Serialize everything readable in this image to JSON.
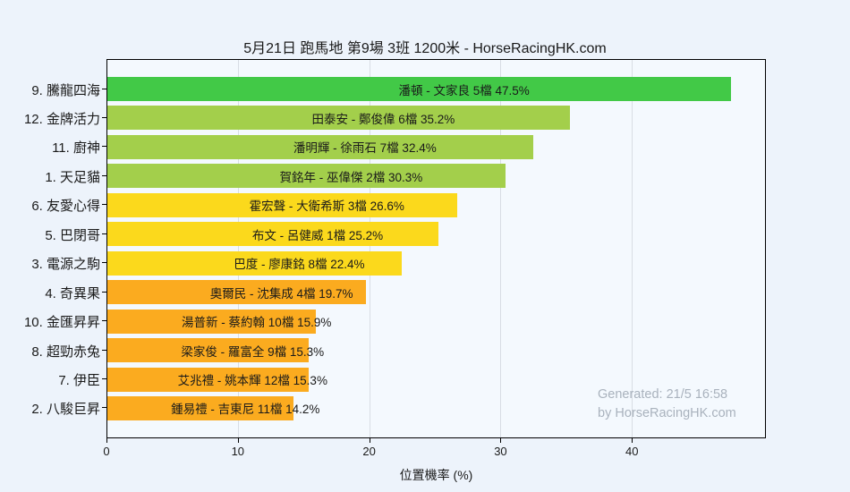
{
  "title": "5月21日  跑馬地  第9場  3班  1200米 - HorseRacingHK.com",
  "watermark": {
    "line1": "Generated: 21/5 16:58",
    "line2": "by HorseRacingHK.com"
  },
  "colors": {
    "background": "#edf3fb",
    "plot_background": "#f4f9fe",
    "gridline": "#d8dde4",
    "axis": "#000000",
    "green": "#42c947",
    "yellow_green": "#a3cf4b",
    "yellow": "#fbd91c",
    "orange": "#fbab1f",
    "watermark_text": "#a9b2bd"
  },
  "chart_data": {
    "type": "bar",
    "orientation": "horizontal",
    "title": "5月21日  跑馬地  第9場  3班  1200米 - HorseRacingHK.com",
    "xlabel": "位置機率 (%)",
    "ylabel": "",
    "xlim": [
      0,
      50.2
    ],
    "xticks": [
      0,
      10,
      20,
      30,
      40
    ],
    "grid": "vertical",
    "legend": "none",
    "categories": [
      "9. 騰龍四海",
      "12. 金牌活力",
      "11. 廚神",
      "1. 天足貓",
      "6. 友愛心得",
      "5. 巴閉哥",
      "3. 電源之駒",
      "4. 奇異果",
      "10. 金匯昇昇",
      "8. 超勁赤兔",
      "7. 伊臣",
      "2. 八駿巨昇"
    ],
    "values": [
      47.5,
      35.2,
      32.4,
      30.3,
      26.6,
      25.2,
      22.4,
      19.7,
      15.9,
      15.3,
      15.3,
      14.2
    ],
    "bar_labels": [
      "潘頓 - 文家良 5檔  47.5%",
      "田泰安 - 鄭俊偉 6檔  35.2%",
      "潘明輝 - 徐雨石 7檔  32.4%",
      "賀銘年 - 巫偉傑 2檔  30.3%",
      "霍宏聲 - 大衛希斯 3檔  26.6%",
      "布文 - 呂健威 1檔  25.2%",
      "巴度 - 廖康銘 8檔  22.4%",
      "奧爾民 - 沈集成 4檔  19.7%",
      "湯普新 - 蔡約翰 10檔  15.9%",
      "梁家俊 - 羅富全 9檔  15.3%",
      "艾兆禮 - 姚本輝 12檔  15.3%",
      "鍾易禮 - 吉東尼 11檔  14.2%"
    ],
    "bar_colors": [
      "#42c947",
      "#a3cf4b",
      "#a3cf4b",
      "#a3cf4b",
      "#fbd91c",
      "#fbd91c",
      "#fbd91c",
      "#fbab1f",
      "#fbab1f",
      "#fbab1f",
      "#fbab1f",
      "#fbab1f"
    ]
  }
}
